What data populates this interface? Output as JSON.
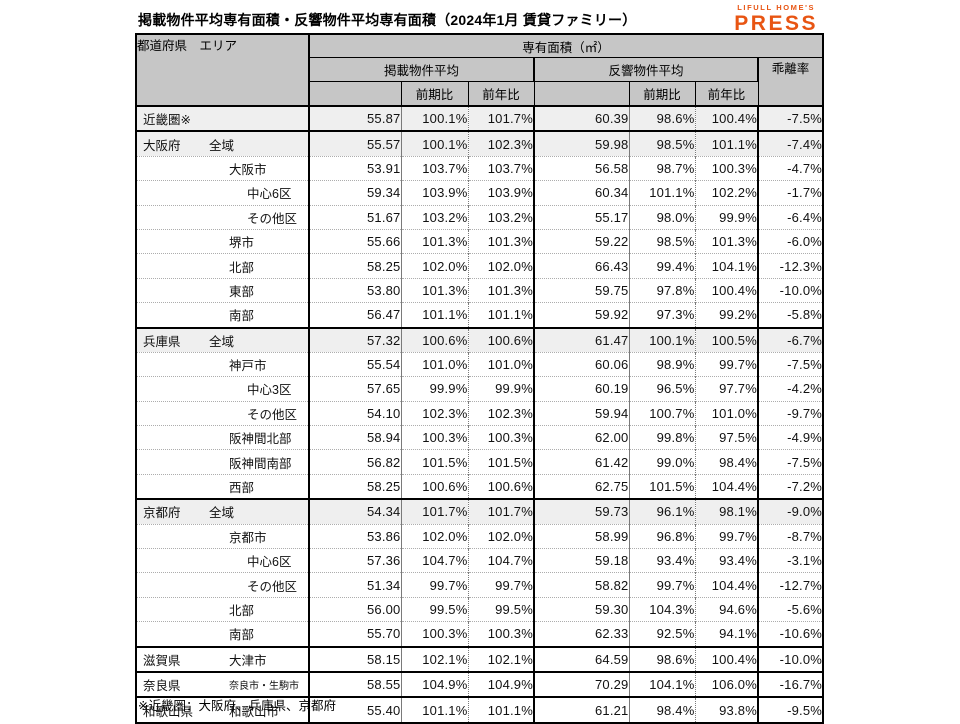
{
  "page": {
    "title": "掲載物件平均専有面積・反響物件平均専有面積（2024年1月 賃貸ファミリー）",
    "footnote": "※近畿圏：大阪府、兵庫県、京都府"
  },
  "logo": {
    "top": "LIFULL HOME'S",
    "main": "PRESS",
    "color": "#E85513"
  },
  "table": {
    "header": {
      "col_region": "都道府県　エリア",
      "area_group": "専有面積（㎡）",
      "listed_group": "掲載物件平均",
      "response_group": "反響物件平均",
      "divergence": "乖離率",
      "prev_period": "前期比",
      "prev_year": "前年比"
    },
    "rows": [
      {
        "pref": "近畿圏※",
        "area": "",
        "indent": 1,
        "shaded": true,
        "section": true,
        "listed": "55.87",
        "listed_pp": "100.1%",
        "listed_py": "101.7%",
        "resp": "60.39",
        "resp_pp": "98.6%",
        "resp_py": "100.4%",
        "gap": "-7.5%"
      },
      {
        "pref": "大阪府",
        "area": "全域",
        "indent": 1,
        "shaded": true,
        "section": true,
        "listed": "55.57",
        "listed_pp": "100.1%",
        "listed_py": "102.3%",
        "resp": "59.98",
        "resp_pp": "98.5%",
        "resp_py": "101.1%",
        "gap": "-7.4%"
      },
      {
        "pref": "",
        "area": "大阪市",
        "indent": 2,
        "listed": "53.91",
        "listed_pp": "103.7%",
        "listed_py": "103.7%",
        "resp": "56.58",
        "resp_pp": "98.7%",
        "resp_py": "100.3%",
        "gap": "-4.7%"
      },
      {
        "pref": "",
        "area": "中心6区",
        "indent": 3,
        "listed": "59.34",
        "listed_pp": "103.9%",
        "listed_py": "103.9%",
        "resp": "60.34",
        "resp_pp": "101.1%",
        "resp_py": "102.2%",
        "gap": "-1.7%"
      },
      {
        "pref": "",
        "area": "その他区",
        "indent": 3,
        "listed": "51.67",
        "listed_pp": "103.2%",
        "listed_py": "103.2%",
        "resp": "55.17",
        "resp_pp": "98.0%",
        "resp_py": "99.9%",
        "gap": "-6.4%"
      },
      {
        "pref": "",
        "area": "堺市",
        "indent": 2,
        "listed": "55.66",
        "listed_pp": "101.3%",
        "listed_py": "101.3%",
        "resp": "59.22",
        "resp_pp": "98.5%",
        "resp_py": "101.3%",
        "gap": "-6.0%"
      },
      {
        "pref": "",
        "area": "北部",
        "indent": 2,
        "listed": "58.25",
        "listed_pp": "102.0%",
        "listed_py": "102.0%",
        "resp": "66.43",
        "resp_pp": "99.4%",
        "resp_py": "104.1%",
        "gap": "-12.3%"
      },
      {
        "pref": "",
        "area": "東部",
        "indent": 2,
        "listed": "53.80",
        "listed_pp": "101.3%",
        "listed_py": "101.3%",
        "resp": "59.75",
        "resp_pp": "97.8%",
        "resp_py": "100.4%",
        "gap": "-10.0%"
      },
      {
        "pref": "",
        "area": "南部",
        "indent": 2,
        "listed": "56.47",
        "listed_pp": "101.1%",
        "listed_py": "101.1%",
        "resp": "59.92",
        "resp_pp": "97.3%",
        "resp_py": "99.2%",
        "gap": "-5.8%"
      },
      {
        "pref": "兵庫県",
        "area": "全域",
        "indent": 1,
        "shaded": true,
        "section": true,
        "listed": "57.32",
        "listed_pp": "100.6%",
        "listed_py": "100.6%",
        "resp": "61.47",
        "resp_pp": "100.1%",
        "resp_py": "100.5%",
        "gap": "-6.7%"
      },
      {
        "pref": "",
        "area": "神戸市",
        "indent": 2,
        "listed": "55.54",
        "listed_pp": "101.0%",
        "listed_py": "101.0%",
        "resp": "60.06",
        "resp_pp": "98.9%",
        "resp_py": "99.7%",
        "gap": "-7.5%"
      },
      {
        "pref": "",
        "area": "中心3区",
        "indent": 3,
        "listed": "57.65",
        "listed_pp": "99.9%",
        "listed_py": "99.9%",
        "resp": "60.19",
        "resp_pp": "96.5%",
        "resp_py": "97.7%",
        "gap": "-4.2%"
      },
      {
        "pref": "",
        "area": "その他区",
        "indent": 3,
        "listed": "54.10",
        "listed_pp": "102.3%",
        "listed_py": "102.3%",
        "resp": "59.94",
        "resp_pp": "100.7%",
        "resp_py": "101.0%",
        "gap": "-9.7%"
      },
      {
        "pref": "",
        "area": "阪神間北部",
        "indent": 2,
        "listed": "58.94",
        "listed_pp": "100.3%",
        "listed_py": "100.3%",
        "resp": "62.00",
        "resp_pp": "99.8%",
        "resp_py": "97.5%",
        "gap": "-4.9%"
      },
      {
        "pref": "",
        "area": "阪神間南部",
        "indent": 2,
        "listed": "56.82",
        "listed_pp": "101.5%",
        "listed_py": "101.5%",
        "resp": "61.42",
        "resp_pp": "99.0%",
        "resp_py": "98.4%",
        "gap": "-7.5%"
      },
      {
        "pref": "",
        "area": "西部",
        "indent": 2,
        "listed": "58.25",
        "listed_pp": "100.6%",
        "listed_py": "100.6%",
        "resp": "62.75",
        "resp_pp": "101.5%",
        "resp_py": "104.4%",
        "gap": "-7.2%"
      },
      {
        "pref": "京都府",
        "area": "全域",
        "indent": 1,
        "shaded": true,
        "section": true,
        "listed": "54.34",
        "listed_pp": "101.7%",
        "listed_py": "101.7%",
        "resp": "59.73",
        "resp_pp": "96.1%",
        "resp_py": "98.1%",
        "gap": "-9.0%"
      },
      {
        "pref": "",
        "area": "京都市",
        "indent": 2,
        "listed": "53.86",
        "listed_pp": "102.0%",
        "listed_py": "102.0%",
        "resp": "58.99",
        "resp_pp": "96.8%",
        "resp_py": "99.7%",
        "gap": "-8.7%"
      },
      {
        "pref": "",
        "area": "中心6区",
        "indent": 3,
        "listed": "57.36",
        "listed_pp": "104.7%",
        "listed_py": "104.7%",
        "resp": "59.18",
        "resp_pp": "93.4%",
        "resp_py": "93.4%",
        "gap": "-3.1%"
      },
      {
        "pref": "",
        "area": "その他区",
        "indent": 3,
        "listed": "51.34",
        "listed_pp": "99.7%",
        "listed_py": "99.7%",
        "resp": "58.82",
        "resp_pp": "99.7%",
        "resp_py": "104.4%",
        "gap": "-12.7%"
      },
      {
        "pref": "",
        "area": "北部",
        "indent": 2,
        "listed": "56.00",
        "listed_pp": "99.5%",
        "listed_py": "99.5%",
        "resp": "59.30",
        "resp_pp": "104.3%",
        "resp_py": "94.6%",
        "gap": "-5.6%"
      },
      {
        "pref": "",
        "area": "南部",
        "indent": 2,
        "listed": "55.70",
        "listed_pp": "100.3%",
        "listed_py": "100.3%",
        "resp": "62.33",
        "resp_pp": "92.5%",
        "resp_py": "94.1%",
        "gap": "-10.6%"
      },
      {
        "pref": "滋賀県",
        "area": "大津市",
        "indent": 2,
        "section": true,
        "listed": "58.15",
        "listed_pp": "102.1%",
        "listed_py": "102.1%",
        "resp": "64.59",
        "resp_pp": "98.6%",
        "resp_py": "100.4%",
        "gap": "-10.0%"
      },
      {
        "pref": "奈良県",
        "area": "奈良市・生駒市",
        "indent": 2,
        "small": true,
        "section": true,
        "listed": "58.55",
        "listed_pp": "104.9%",
        "listed_py": "104.9%",
        "resp": "70.29",
        "resp_pp": "104.1%",
        "resp_py": "106.0%",
        "gap": "-16.7%"
      },
      {
        "pref": "和歌山県",
        "area": "和歌山市",
        "indent": 2,
        "section": true,
        "listed": "55.40",
        "listed_pp": "101.1%",
        "listed_py": "101.1%",
        "resp": "61.21",
        "resp_pp": "98.4%",
        "resp_py": "93.8%",
        "gap": "-9.5%"
      }
    ]
  }
}
